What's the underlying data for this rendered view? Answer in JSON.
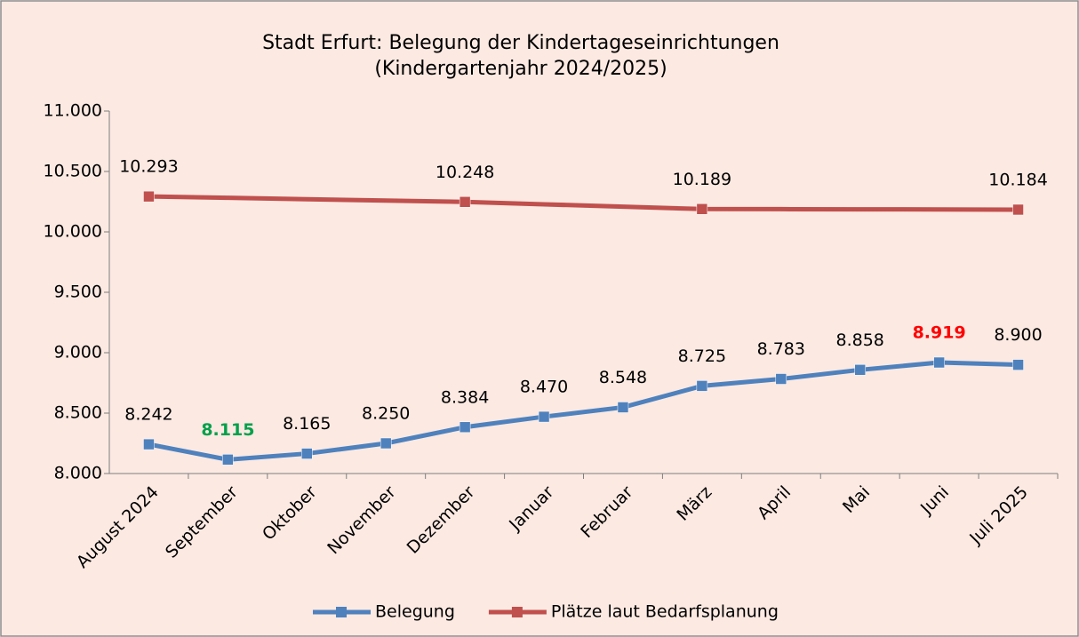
{
  "chart_data": {
    "type": "line",
    "title": [
      "Stadt Erfurt: Belegung der Kindertageseinrichtungen",
      "(Kindergartenjahr 2024/2025)"
    ],
    "categories": [
      "August 2024",
      "September",
      "Oktober",
      "November",
      "Dezember",
      "Januar",
      "Februar",
      "März",
      "April",
      "Mai",
      "Juni",
      "Juli 2025"
    ],
    "series": [
      {
        "name": "Belegung",
        "color": "#4f81bd",
        "values": [
          8242,
          8115,
          8165,
          8250,
          8384,
          8470,
          8548,
          8725,
          8783,
          8858,
          8919,
          8900
        ],
        "value_labels": [
          "8.242",
          "8.115",
          "8.165",
          "8.250",
          "8.384",
          "8.470",
          "8.548",
          "8.725",
          "8.783",
          "8.858",
          "8.919",
          "8.900"
        ],
        "value_label_colors": [
          "#000000",
          "#00a04a",
          "#000000",
          "#000000",
          "#000000",
          "#000000",
          "#000000",
          "#000000",
          "#000000",
          "#000000",
          "#ff0000",
          "#000000"
        ]
      },
      {
        "name": "Plätze laut Bedarfsplanung",
        "color": "#c0504d",
        "values": [
          10293,
          10282,
          10270,
          10259,
          10248,
          10228,
          10209,
          10189,
          10188,
          10187,
          10186,
          10184
        ],
        "value_labels": [
          "10.293",
          null,
          null,
          null,
          "10.248",
          null,
          null,
          "10.189",
          null,
          null,
          null,
          "10.184"
        ],
        "value_label_colors": [
          "#000000",
          null,
          null,
          null,
          "#000000",
          null,
          null,
          "#000000",
          null,
          null,
          null,
          "#000000"
        ]
      }
    ],
    "ylim": [
      8000,
      11000
    ],
    "yticks": [
      {
        "value": 8000,
        "label": "8.000"
      },
      {
        "value": 8500,
        "label": "8.500"
      },
      {
        "value": 9000,
        "label": "9.000"
      },
      {
        "value": 9500,
        "label": "9.500"
      },
      {
        "value": 10000,
        "label": "10.000"
      },
      {
        "value": 10500,
        "label": "10.500"
      },
      {
        "value": 11000,
        "label": "11.000"
      }
    ],
    "grid": false,
    "legend": "bottom"
  }
}
